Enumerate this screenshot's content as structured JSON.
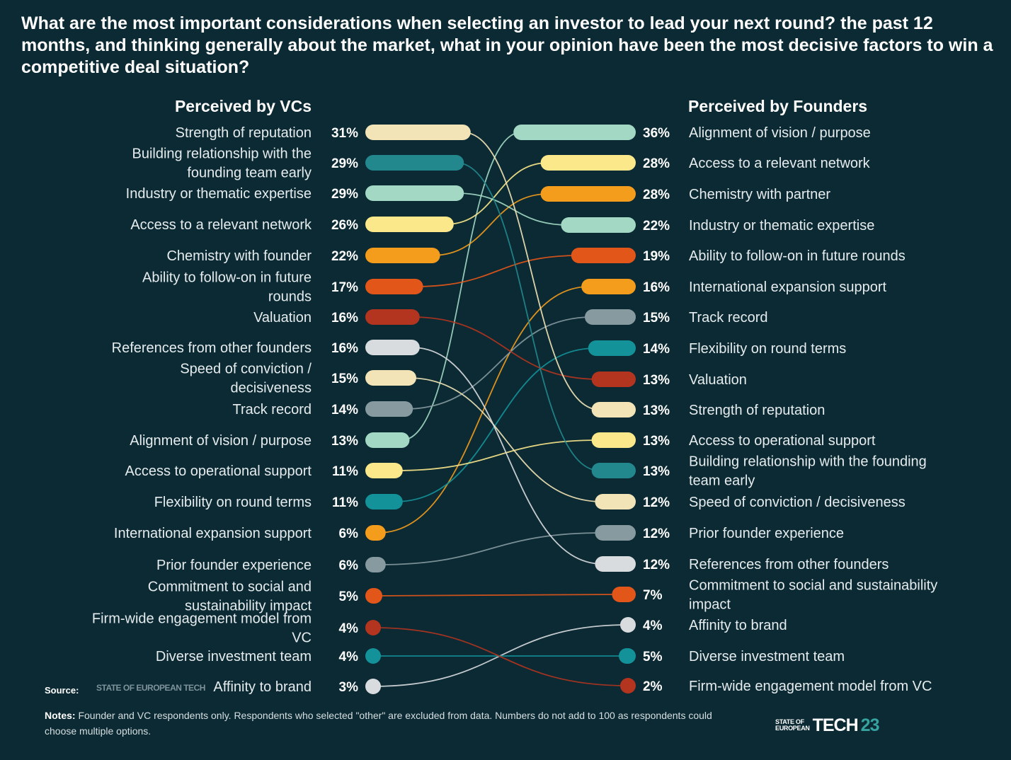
{
  "title": "What are the most important considerations when selecting an investor to lead your next round? the past 12 months, and thinking generally about the market, what in your opinion have been the most decisive factors to win a competitive deal situation?",
  "chart_data": {
    "type": "slope",
    "left_heading": "Perceived by VCs",
    "right_heading": "Perceived by Founders",
    "value_unit": "%",
    "max_value": 36,
    "items": [
      {
        "left_label": "Strength of reputation",
        "left_value": 31,
        "color": "#f2e4b6"
      },
      {
        "left_label": "Building relationship with the founding team early",
        "left_value": 29,
        "color": "#22888e"
      },
      {
        "left_label": "Industry or thematic expertise",
        "left_value": 29,
        "color": "#a3d9c4"
      },
      {
        "left_label": "Access to a relevant network",
        "left_value": 26,
        "color": "#fbe88a"
      },
      {
        "left_label": "Chemistry with founder",
        "left_value": 22,
        "color": "#f49c1c"
      },
      {
        "left_label": "Ability to follow-on in future rounds",
        "left_value": 17,
        "color": "#e3561a"
      },
      {
        "left_label": "Valuation",
        "left_value": 16,
        "color": "#b3341f"
      },
      {
        "left_label": "References from other founders",
        "left_value": 16,
        "color": "#d9dcdf"
      },
      {
        "left_label": "Speed of conviction / decisiveness",
        "left_value": 15,
        "color": "#f2e4b6"
      },
      {
        "left_label": "Track record",
        "left_value": 14,
        "color": "#869aa0"
      },
      {
        "left_label": "Alignment of vision / purpose",
        "left_value": 13,
        "color": "#a3d9c4"
      },
      {
        "left_label": "Access to operational support",
        "left_value": 11,
        "color": "#fbe88a"
      },
      {
        "left_label": "Flexibility on round terms",
        "left_value": 11,
        "color": "#14929a"
      },
      {
        "left_label": "International expansion support",
        "left_value": 6,
        "color": "#f49c1c"
      },
      {
        "left_label": "Prior founder experience",
        "left_value": 6,
        "color": "#869aa0"
      },
      {
        "left_label": "Commitment to social and sustainability impact",
        "left_value": 5,
        "color": "#e3561a"
      },
      {
        "left_label": "Firm-wide engagement model from VC",
        "left_value": 4,
        "color": "#b3341f"
      },
      {
        "left_label": "Diverse investment team",
        "left_value": 4,
        "color": "#14929a"
      },
      {
        "left_label": "Affinity to brand",
        "left_value": 3,
        "color": "#d9dcdf"
      }
    ],
    "right_items": [
      {
        "right_label": "Alignment of vision / purpose",
        "right_value": 36,
        "color": "#a3d9c4",
        "left_rank": 10
      },
      {
        "right_label": "Access to a relevant network",
        "right_value": 28,
        "color": "#fbe88a",
        "left_rank": 3
      },
      {
        "right_label": "Chemistry with partner",
        "right_value": 28,
        "color": "#f49c1c",
        "left_rank": 4
      },
      {
        "right_label": "Industry or thematic expertise",
        "right_value": 22,
        "color": "#a3d9c4",
        "left_rank": 2
      },
      {
        "right_label": "Ability to follow-on in future rounds",
        "right_value": 19,
        "color": "#e3561a",
        "left_rank": 5
      },
      {
        "right_label": "International expansion support",
        "right_value": 16,
        "color": "#f49c1c",
        "left_rank": 13
      },
      {
        "right_label": "Track record",
        "right_value": 15,
        "color": "#869aa0",
        "left_rank": 9
      },
      {
        "right_label": "Flexibility on round terms",
        "right_value": 14,
        "color": "#14929a",
        "left_rank": 12
      },
      {
        "right_label": "Valuation",
        "right_value": 13,
        "color": "#b3341f",
        "left_rank": 6
      },
      {
        "right_label": "Strength of reputation",
        "right_value": 13,
        "color": "#f2e4b6",
        "left_rank": 0
      },
      {
        "right_label": "Access to operational support",
        "right_value": 13,
        "color": "#fbe88a",
        "left_rank": 11
      },
      {
        "right_label": "Building relationship with the founding team early",
        "right_value": 13,
        "color": "#22888e",
        "left_rank": 1
      },
      {
        "right_label": "Speed of conviction / decisiveness",
        "right_value": 12,
        "color": "#f2e4b6",
        "left_rank": 8
      },
      {
        "right_label": "Prior founder experience",
        "right_value": 12,
        "color": "#869aa0",
        "left_rank": 14
      },
      {
        "right_label": "References from other founders",
        "right_value": 12,
        "color": "#d9dcdf",
        "left_rank": 7
      },
      {
        "right_label": "Commitment to social and sustainability impact",
        "right_value": 7,
        "color": "#e3561a",
        "left_rank": 15
      },
      {
        "right_label": "Affinity to brand",
        "right_value": 4,
        "color": "#d9dcdf",
        "left_rank": 18
      },
      {
        "right_label": "Diverse investment team",
        "right_value": 5,
        "color": "#14929a",
        "left_rank": 17
      },
      {
        "right_label": "Firm-wide engagement model from VC",
        "right_value": 2,
        "color": "#b3341f",
        "left_rank": 16
      }
    ]
  },
  "source_label": "Source:",
  "source_logo_text": "STATE OF EUROPEAN TECH",
  "notes_label": "Notes:",
  "notes_text": "Founder and VC respondents only. Respondents who selected \"other\" are excluded from data. Numbers do not add to 100 as respondents could choose multiple options.",
  "brand": {
    "small_top": "STATE OF",
    "small_bottom": "EUROPEAN",
    "tech": "TECH",
    "year": "23"
  },
  "colors": {
    "background": "#0b2a33",
    "accent": "#37a3a0"
  }
}
